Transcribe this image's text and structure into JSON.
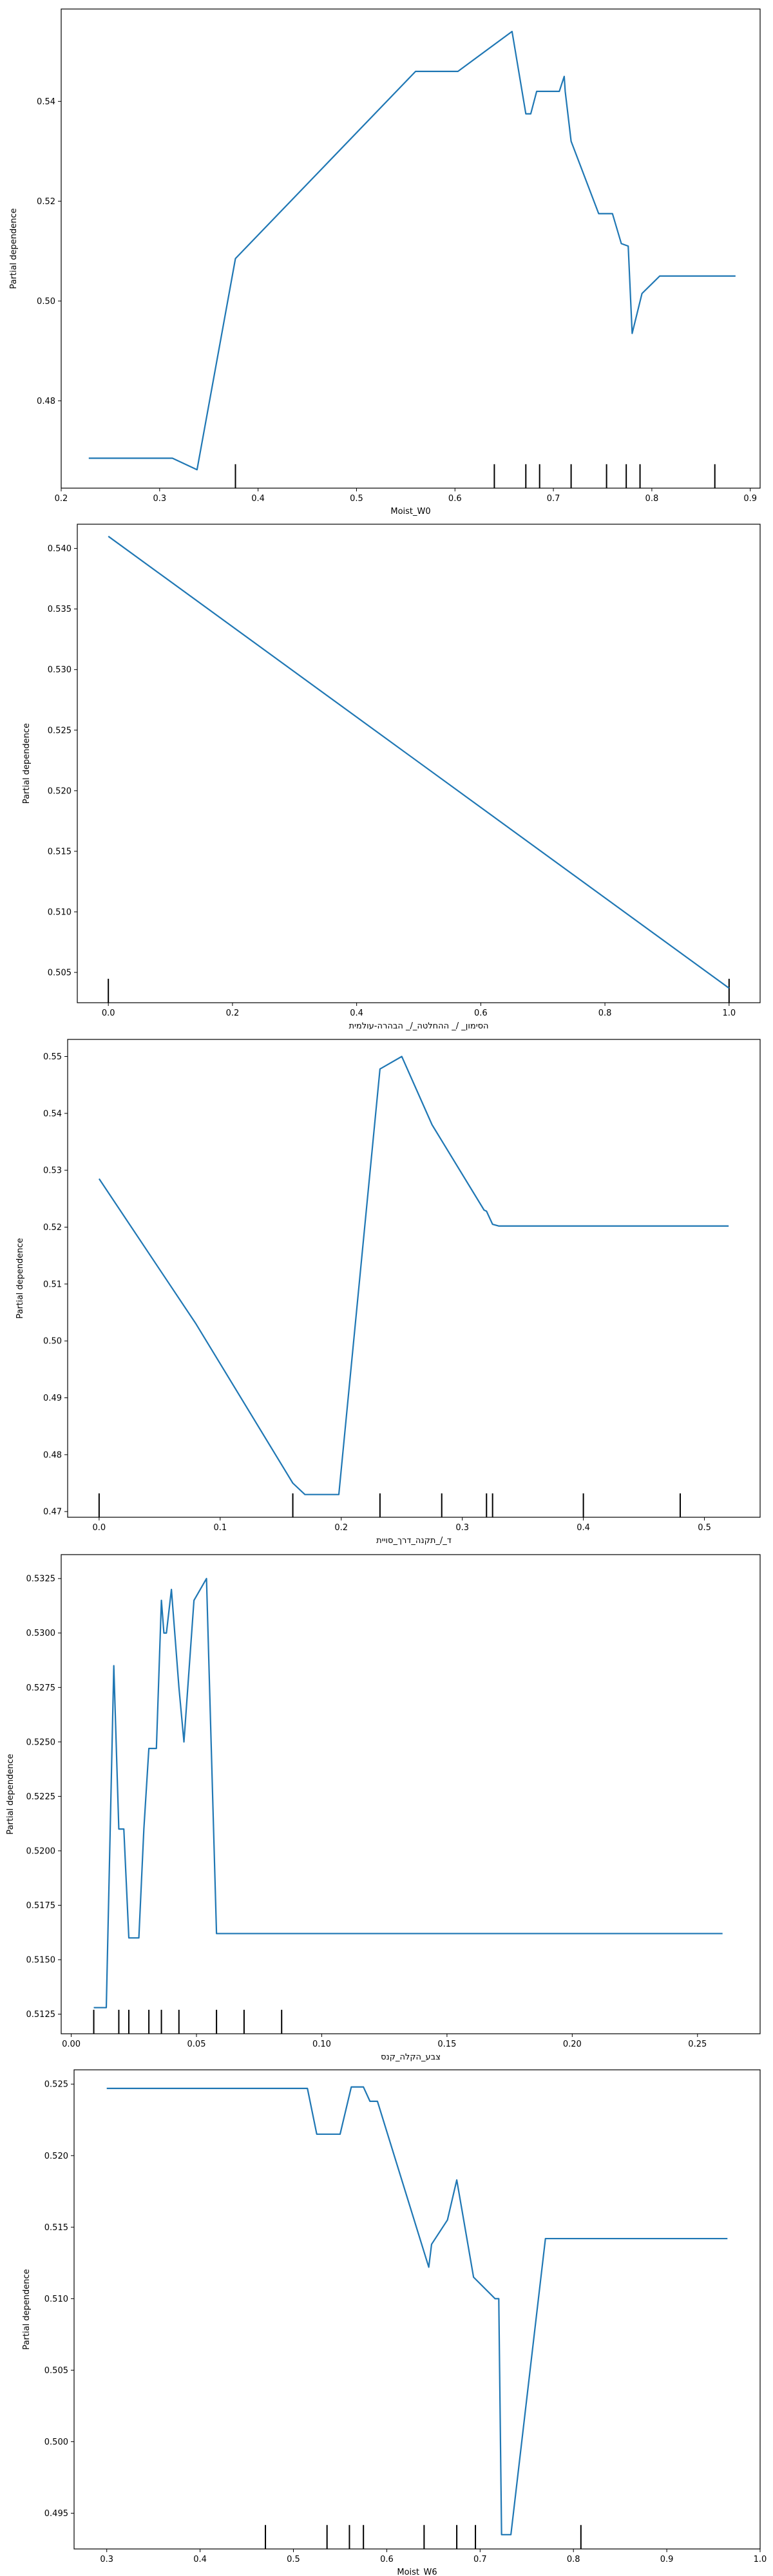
{
  "chart_data": [
    {
      "type": "line",
      "xlabel": "Moist_W0",
      "ylabel": "Partial dependence",
      "xlim": [
        0.2,
        0.91
      ],
      "ylim": [
        0.4625,
        0.5585
      ],
      "xticks": [
        0.2,
        0.3,
        0.4,
        0.5,
        0.6,
        0.7,
        0.8,
        0.9
      ],
      "yticks": [
        0.48,
        0.5,
        0.52,
        0.54
      ],
      "decimals_x": 1,
      "decimals_y": 2,
      "x": [
        0.228,
        0.313,
        0.338,
        0.377,
        0.56,
        0.603,
        0.658,
        0.672,
        0.677,
        0.683,
        0.706,
        0.711,
        0.712,
        0.718,
        0.746,
        0.76,
        0.769,
        0.776,
        0.78,
        0.79,
        0.808,
        0.885
      ],
      "y": [
        0.4685,
        0.4685,
        0.4662,
        0.5085,
        0.546,
        0.546,
        0.554,
        0.5375,
        0.5375,
        0.542,
        0.542,
        0.545,
        0.542,
        0.532,
        0.5175,
        0.5175,
        0.5115,
        0.511,
        0.4935,
        0.5015,
        0.505,
        0.505
      ],
      "rug": [
        0.377,
        0.64,
        0.672,
        0.686,
        0.718,
        0.754,
        0.774,
        0.788,
        0.864
      ]
    },
    {
      "type": "line",
      "xlabel": "הסימון_ /_ ההחלטה_/_ הבהרה-עולמית",
      "ylabel": "Partial dependence",
      "xlim": [
        -0.05,
        1.05
      ],
      "ylim": [
        0.5025,
        0.542
      ],
      "xticks": [
        0.0,
        0.2,
        0.4,
        0.6,
        0.8,
        1.0
      ],
      "yticks": [
        0.505,
        0.51,
        0.515,
        0.52,
        0.525,
        0.53,
        0.535,
        0.54
      ],
      "decimals_x": 1,
      "decimals_y": 3,
      "x": [
        0.0,
        1.0
      ],
      "y": [
        0.541,
        0.5037
      ],
      "rug": [
        0.0,
        1.0
      ]
    },
    {
      "type": "line",
      "xlabel": "ד_/_תקנה_דרך_סויית",
      "ylabel": "Partial dependence",
      "xlim": [
        -0.026,
        0.546
      ],
      "ylim": [
        0.469,
        0.553
      ],
      "xticks": [
        0.0,
        0.1,
        0.2,
        0.3,
        0.4,
        0.5
      ],
      "yticks": [
        0.47,
        0.48,
        0.49,
        0.5,
        0.51,
        0.52,
        0.53,
        0.54,
        0.55
      ],
      "decimals_x": 1,
      "decimals_y": 2,
      "x": [
        0.0,
        0.08,
        0.16,
        0.17,
        0.198,
        0.232,
        0.25,
        0.275,
        0.318,
        0.32,
        0.325,
        0.33,
        0.52
      ],
      "y": [
        0.5285,
        0.503,
        0.475,
        0.473,
        0.473,
        0.5478,
        0.55,
        0.538,
        0.523,
        0.5228,
        0.5205,
        0.5202,
        0.5202
      ],
      "rug": [
        0.0,
        0.16,
        0.232,
        0.283,
        0.32,
        0.325,
        0.4,
        0.48
      ]
    },
    {
      "type": "line",
      "xlabel": "צבע_הקלה_קנס",
      "ylabel": "Partial dependence",
      "xlim": [
        -0.004,
        0.275
      ],
      "ylim": [
        0.5116,
        0.5336
      ],
      "xticks": [
        0.0,
        0.05,
        0.1,
        0.15,
        0.2,
        0.25
      ],
      "yticks": [
        0.5125,
        0.515,
        0.5175,
        0.52,
        0.5225,
        0.525,
        0.5275,
        0.53,
        0.5325
      ],
      "decimals_x": 2,
      "decimals_y": 4,
      "x": [
        0.009,
        0.014,
        0.017,
        0.019,
        0.021,
        0.023,
        0.027,
        0.029,
        0.031,
        0.032,
        0.034,
        0.036,
        0.037,
        0.038,
        0.04,
        0.043,
        0.045,
        0.049,
        0.054,
        0.058,
        0.26
      ],
      "y": [
        0.5128,
        0.5128,
        0.5285,
        0.521,
        0.521,
        0.516,
        0.516,
        0.521,
        0.5247,
        0.5247,
        0.5247,
        0.5315,
        0.53,
        0.53,
        0.532,
        0.5275,
        0.525,
        0.5315,
        0.5325,
        0.5162,
        0.5162
      ],
      "rug": [
        0.009,
        0.019,
        0.023,
        0.031,
        0.036,
        0.043,
        0.058,
        0.069,
        0.084
      ]
    },
    {
      "type": "line",
      "xlabel": "Moist_W6",
      "ylabel": "Partial dependence",
      "xlim": [
        0.265,
        1.0
      ],
      "ylim": [
        0.4925,
        0.526
      ],
      "xticks": [
        0.3,
        0.4,
        0.5,
        0.6,
        0.7,
        0.8,
        0.9,
        1.0
      ],
      "yticks": [
        0.495,
        0.5,
        0.505,
        0.51,
        0.515,
        0.52,
        0.525
      ],
      "decimals_x": 1,
      "decimals_y": 3,
      "x": [
        0.3,
        0.515,
        0.525,
        0.55,
        0.562,
        0.575,
        0.582,
        0.59,
        0.645,
        0.648,
        0.665,
        0.675,
        0.693,
        0.716,
        0.72,
        0.723,
        0.733,
        0.77,
        0.965
      ],
      "y": [
        0.5247,
        0.5247,
        0.5215,
        0.5215,
        0.5248,
        0.5248,
        0.5238,
        0.5238,
        0.5122,
        0.5138,
        0.5155,
        0.5183,
        0.5115,
        0.51,
        0.51,
        0.4935,
        0.4935,
        0.5142,
        0.5142
      ],
      "rug": [
        0.47,
        0.536,
        0.56,
        0.575,
        0.64,
        0.675,
        0.695,
        0.808
      ]
    }
  ]
}
